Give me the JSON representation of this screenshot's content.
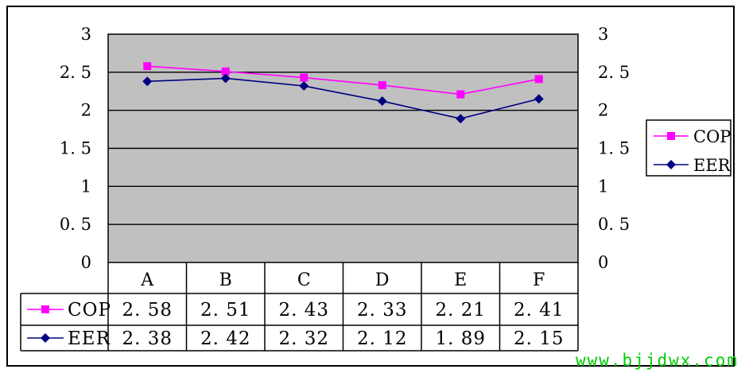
{
  "chart_data": {
    "type": "line",
    "categories": [
      "A",
      "B",
      "C",
      "D",
      "E",
      "F"
    ],
    "series": [
      {
        "name": "COP",
        "values": [
          2.58,
          2.51,
          2.43,
          2.33,
          2.21,
          2.41
        ],
        "color": "#ff00ff",
        "marker": "square"
      },
      {
        "name": "EER",
        "values": [
          2.38,
          2.42,
          2.32,
          2.12,
          1.89,
          2.15
        ],
        "color": "#000080",
        "marker": "diamond"
      }
    ],
    "table_values": {
      "COP": [
        "2. 58",
        "2. 51",
        "2. 43",
        "2. 33",
        "2. 21",
        "2. 41"
      ],
      "EER": [
        "2. 38",
        "2. 42",
        "2. 32",
        "2. 12",
        "1. 89",
        "2. 15"
      ]
    },
    "ylim": [
      0,
      3
    ],
    "y_ticks": [
      "0",
      "0. 5",
      "1",
      "1. 5",
      "2",
      "2. 5",
      "3"
    ],
    "secondary_ylim": [
      0,
      3
    ],
    "grid": true,
    "plot_background": "#c0c0c0",
    "legend_placement": "right",
    "data_table": true,
    "title": "",
    "xlabel": "",
    "ylabel": ""
  },
  "watermark": "www.bjjdwx.com"
}
